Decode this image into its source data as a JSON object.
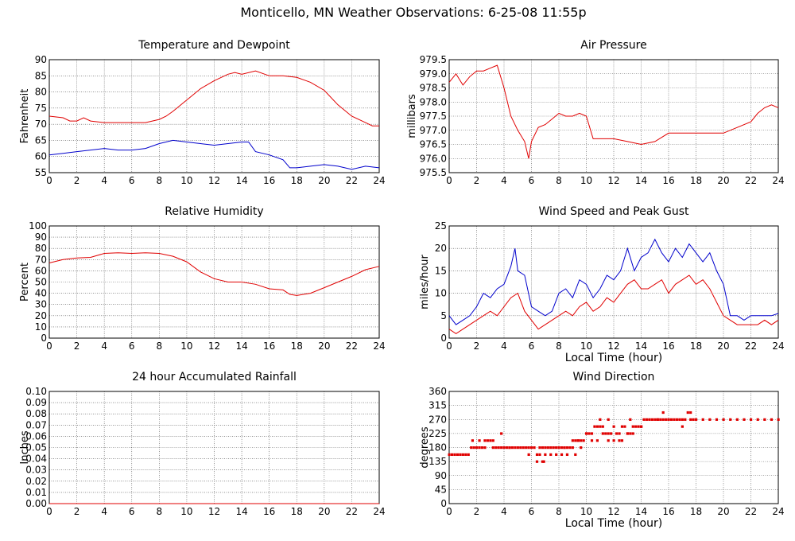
{
  "page": {
    "title": "Monticello, MN Weather Observations: 6-25-08 11:55p"
  },
  "chart_data": [
    {
      "type": "line",
      "title": "Temperature and Dewpoint",
      "xlabel": "",
      "ylabel": "Fahrenheit",
      "xlim": [
        0,
        24
      ],
      "ylim": [
        55,
        90
      ],
      "xticks": [
        0,
        2,
        4,
        6,
        8,
        10,
        12,
        14,
        16,
        18,
        20,
        22,
        24
      ],
      "yticks": [
        55,
        60,
        65,
        70,
        75,
        80,
        85,
        90
      ],
      "grid": true,
      "series": [
        {
          "color": "#e00000",
          "x": [
            0,
            1,
            1.5,
            2,
            2.5,
            3,
            4,
            5,
            6,
            7,
            8,
            8.5,
            9,
            10,
            11,
            12,
            13,
            13.5,
            14,
            15,
            16,
            17,
            18,
            19,
            20,
            21,
            22,
            23,
            23.5,
            24
          ],
          "y": [
            72.5,
            72,
            71,
            71,
            72,
            71,
            70.5,
            70.5,
            70.5,
            70.5,
            71.5,
            72.5,
            74,
            77.5,
            81,
            83.5,
            85.5,
            86,
            85.5,
            86.5,
            85,
            85,
            84.5,
            83,
            80.5,
            76,
            72.5,
            70.5,
            69.5,
            69.5
          ]
        },
        {
          "color": "#0000cc",
          "x": [
            0,
            1,
            2,
            3,
            4,
            5,
            6,
            7,
            8,
            9,
            10,
            11,
            12,
            13,
            14,
            14.5,
            15,
            16,
            17,
            17.5,
            18,
            19,
            20,
            21,
            22,
            23,
            24
          ],
          "y": [
            60.5,
            61,
            61.5,
            62,
            62.5,
            62,
            62,
            62.5,
            64,
            65,
            64.5,
            64,
            63.5,
            64,
            64.5,
            64.5,
            61.5,
            60.5,
            59,
            56.5,
            56.5,
            57,
            57.5,
            57,
            56,
            57,
            56.5
          ]
        }
      ]
    },
    {
      "type": "line",
      "title": "Air Pressure",
      "xlabel": "",
      "ylabel": "millibars",
      "xlim": [
        0,
        24
      ],
      "ylim": [
        975.5,
        979.5
      ],
      "xticks": [
        0,
        2,
        4,
        6,
        8,
        10,
        12,
        14,
        16,
        18,
        20,
        22,
        24
      ],
      "yticks": [
        975.5,
        976.0,
        976.5,
        977.0,
        977.5,
        978.0,
        978.5,
        979.0,
        979.5
      ],
      "ytick_labels": [
        "975.5",
        "976.0",
        "976.5",
        "977.0",
        "977.5",
        "978.0",
        "978.5",
        "979.0",
        "979.5"
      ],
      "grid": true,
      "series": [
        {
          "color": "#e00000",
          "x": [
            0,
            0.5,
            1,
            1.5,
            2,
            2.5,
            3,
            3.5,
            4,
            4.5,
            5,
            5.5,
            5.8,
            6,
            6.5,
            7,
            7.5,
            8,
            8.5,
            9,
            9.5,
            10,
            10.5,
            11,
            12,
            13,
            14,
            15,
            16,
            17,
            18,
            19,
            20,
            21,
            22,
            22.5,
            23,
            23.5,
            24
          ],
          "y": [
            978.7,
            979.0,
            978.6,
            978.9,
            979.1,
            979.1,
            979.2,
            979.3,
            978.5,
            977.5,
            977.0,
            976.6,
            976.0,
            976.6,
            977.1,
            977.2,
            977.4,
            977.6,
            977.5,
            977.5,
            977.6,
            977.5,
            976.7,
            976.7,
            976.7,
            976.6,
            976.5,
            976.6,
            976.9,
            976.9,
            976.9,
            976.9,
            976.9,
            977.1,
            977.3,
            977.6,
            977.8,
            977.9,
            977.8
          ]
        }
      ]
    },
    {
      "type": "line",
      "title": "Relative Humidity",
      "xlabel": "",
      "ylabel": "Percent",
      "xlim": [
        0,
        24
      ],
      "ylim": [
        0,
        100
      ],
      "xticks": [
        0,
        2,
        4,
        6,
        8,
        10,
        12,
        14,
        16,
        18,
        20,
        22,
        24
      ],
      "yticks": [
        0,
        10,
        20,
        30,
        40,
        50,
        60,
        70,
        80,
        90,
        100
      ],
      "grid": true,
      "series": [
        {
          "color": "#e00000",
          "x": [
            0,
            1,
            2,
            3,
            4,
            5,
            6,
            7,
            8,
            9,
            10,
            11,
            12,
            13,
            14,
            15,
            16,
            17,
            17.5,
            18,
            19,
            20,
            21,
            22,
            23,
            24
          ],
          "y": [
            67,
            70,
            71.5,
            72,
            75.5,
            76,
            75.5,
            76,
            75.5,
            73,
            68,
            59,
            53,
            50,
            50,
            48,
            44,
            43,
            39,
            38,
            40,
            45,
            50,
            55,
            61,
            64
          ]
        }
      ]
    },
    {
      "type": "line",
      "title": "Wind Speed and Peak Gust",
      "xlabel": "Local Time (hour)",
      "ylabel": "miles/hour",
      "xlim": [
        0,
        24
      ],
      "ylim": [
        0,
        25
      ],
      "xticks": [
        0,
        2,
        4,
        6,
        8,
        10,
        12,
        14,
        16,
        18,
        20,
        22,
        24
      ],
      "yticks": [
        0,
        5,
        10,
        15,
        20,
        25
      ],
      "grid": true,
      "series": [
        {
          "color": "#0000cc",
          "x": [
            0,
            0.5,
            1,
            1.5,
            2,
            2.5,
            3,
            3.5,
            4,
            4.5,
            4.8,
            5,
            5.5,
            6,
            6.5,
            7,
            7.5,
            8,
            8.5,
            9,
            9.5,
            10,
            10.5,
            11,
            11.5,
            12,
            12.5,
            13,
            13.5,
            14,
            14.5,
            15,
            15.5,
            16,
            16.5,
            17,
            17.5,
            18,
            18.5,
            19,
            19.5,
            20,
            20.5,
            21,
            21.5,
            22,
            22.5,
            23,
            23.5,
            24
          ],
          "y": [
            5,
            3,
            4,
            5,
            7,
            10,
            9,
            11,
            12,
            16,
            20,
            15,
            14,
            7,
            6,
            5,
            6,
            10,
            11,
            9,
            13,
            12,
            9,
            11,
            14,
            13,
            15,
            20,
            15,
            18,
            19,
            22,
            19,
            17,
            20,
            18,
            21,
            19,
            17,
            19,
            15,
            12,
            5,
            5,
            4,
            5,
            5,
            5,
            5,
            5.5
          ]
        },
        {
          "color": "#e00000",
          "x": [
            0,
            0.5,
            1,
            1.5,
            2,
            2.5,
            3,
            3.5,
            4,
            4.5,
            5,
            5.5,
            6,
            6.5,
            7,
            7.5,
            8,
            8.5,
            9,
            9.5,
            10,
            10.5,
            11,
            11.5,
            12,
            12.5,
            13,
            13.5,
            14,
            14.5,
            15,
            15.5,
            16,
            16.5,
            17,
            17.5,
            18,
            18.5,
            19,
            19.5,
            20,
            20.5,
            21,
            21.5,
            22,
            22.5,
            23,
            23.5,
            24
          ],
          "y": [
            2,
            1,
            2,
            3,
            4,
            5,
            6,
            5,
            7,
            9,
            10,
            6,
            4,
            2,
            3,
            4,
            5,
            6,
            5,
            7,
            8,
            6,
            7,
            9,
            8,
            10,
            12,
            13,
            11,
            11,
            12,
            13,
            10,
            12,
            13,
            14,
            12,
            13,
            11,
            8,
            5,
            4,
            3,
            3,
            3,
            3,
            4,
            3,
            4
          ]
        }
      ]
    },
    {
      "type": "line",
      "title": "24 hour Accumulated Rainfall",
      "xlabel": "",
      "ylabel": "Inches",
      "xlim": [
        0,
        24
      ],
      "ylim": [
        0,
        0.1
      ],
      "xticks": [
        0,
        2,
        4,
        6,
        8,
        10,
        12,
        14,
        16,
        18,
        20,
        22,
        24
      ],
      "yticks": [
        0,
        0.01,
        0.02,
        0.03,
        0.04,
        0.05,
        0.06,
        0.07,
        0.08,
        0.09,
        0.1
      ],
      "ytick_labels": [
        "0.00",
        "0.01",
        "0.02",
        "0.03",
        "0.04",
        "0.05",
        "0.06",
        "0.07",
        "0.08",
        "0.09",
        "0.10"
      ],
      "grid": true,
      "series": [
        {
          "color": "#e00000",
          "x": [
            0,
            24
          ],
          "y": [
            0,
            0
          ]
        }
      ]
    },
    {
      "type": "scatter",
      "title": "Wind Direction",
      "xlabel": "Local Time (hour)",
      "ylabel": "degrees",
      "xlim": [
        0,
        24
      ],
      "ylim": [
        0,
        360
      ],
      "xticks": [
        0,
        2,
        4,
        6,
        8,
        10,
        12,
        14,
        16,
        18,
        20,
        22,
        24
      ],
      "yticks": [
        0,
        45,
        90,
        135,
        180,
        225,
        270,
        315,
        360
      ],
      "grid": true,
      "series": [
        {
          "color": "#e00000",
          "x": [
            0,
            0.2,
            0.4,
            0.6,
            0.8,
            1.0,
            1.2,
            1.4,
            1.6,
            1.7,
            1.8,
            2.0,
            2.2,
            2.4,
            2.6,
            2.8,
            3.0,
            3.2,
            3.4,
            3.6,
            3.8,
            4.0,
            4.2,
            4.4,
            4.6,
            4.8,
            5.0,
            5.2,
            5.4,
            5.6,
            5.8,
            6.0,
            6.2,
            6.4,
            6.6,
            6.8,
            7.0,
            7.2,
            7.4,
            7.6,
            7.8,
            8.0,
            8.2,
            8.4,
            8.6,
            8.8,
            9.0,
            9.2,
            9.4,
            9.6,
            9.8,
            10.0,
            10.2,
            10.4,
            10.6,
            10.8,
            11.0,
            11.2,
            11.4,
            11.6,
            11.8,
            12.0,
            12.2,
            12.4,
            12.6,
            12.8,
            13.0,
            13.2,
            13.4,
            13.6,
            13.8,
            14.0,
            14.2,
            14.4,
            14.6,
            14.8,
            15.0,
            15.2,
            15.4,
            15.6,
            15.8,
            16.0,
            16.2,
            16.4,
            16.6,
            16.8,
            17.0,
            17.2,
            17.4,
            17.6,
            17.8,
            18.0,
            18.5,
            19.0,
            19.5,
            20.0,
            20.5,
            21.0,
            21.5,
            22.0,
            22.5,
            23.0,
            23.5,
            24.0,
            2.2,
            2.6,
            3.2,
            3.8,
            4.4,
            5.8,
            6.4,
            6.8,
            7.0,
            7.4,
            7.8,
            8.2,
            8.6,
            9.0,
            9.4,
            9.6,
            10.0,
            10.4,
            10.8,
            11.2,
            11.6,
            12.0,
            12.6,
            13.0,
            13.4,
            14.0,
            15.2,
            15.6,
            17.0,
            17.6,
            6.6,
            6.9,
            8.4,
            9.2,
            11.6,
            12.4,
            11.0,
            13.2
          ],
          "y": [
            157.5,
            157.5,
            157.5,
            157.5,
            157.5,
            157.5,
            157.5,
            157.5,
            180,
            202.5,
            180,
            180,
            202.5,
            180,
            202.5,
            202.5,
            202.5,
            202.5,
            180,
            180,
            180,
            180,
            180,
            180,
            180,
            180,
            180,
            180,
            180,
            180,
            180,
            180,
            180,
            157.5,
            180,
            180,
            180,
            180,
            180,
            180,
            180,
            180,
            180,
            180,
            180,
            180,
            202.5,
            202.5,
            202.5,
            202.5,
            202.5,
            225,
            225,
            225,
            247.5,
            247.5,
            247.5,
            247.5,
            225,
            225,
            225,
            247.5,
            225,
            225,
            247.5,
            247.5,
            225,
            225,
            247.5,
            247.5,
            247.5,
            247.5,
            270,
            270,
            270,
            270,
            270,
            270,
            270,
            270,
            270,
            270,
            270,
            270,
            270,
            270,
            270,
            270,
            292.5,
            270,
            270,
            270,
            270,
            270,
            270,
            270,
            270,
            270,
            270,
            270,
            270,
            270,
            270,
            270,
            180,
            180,
            180,
            225,
            180,
            157.5,
            135,
            135,
            157.5,
            157.5,
            157.5,
            157.5,
            157.5,
            180,
            202.5,
            180,
            225,
            202.5,
            202.5,
            225,
            202.5,
            202.5,
            202.5,
            225,
            225,
            247.5,
            270,
            292.5,
            247.5,
            292.5,
            157.5,
            135,
            180,
            157.5,
            270,
            202.5,
            270,
            270
          ]
        }
      ]
    }
  ]
}
